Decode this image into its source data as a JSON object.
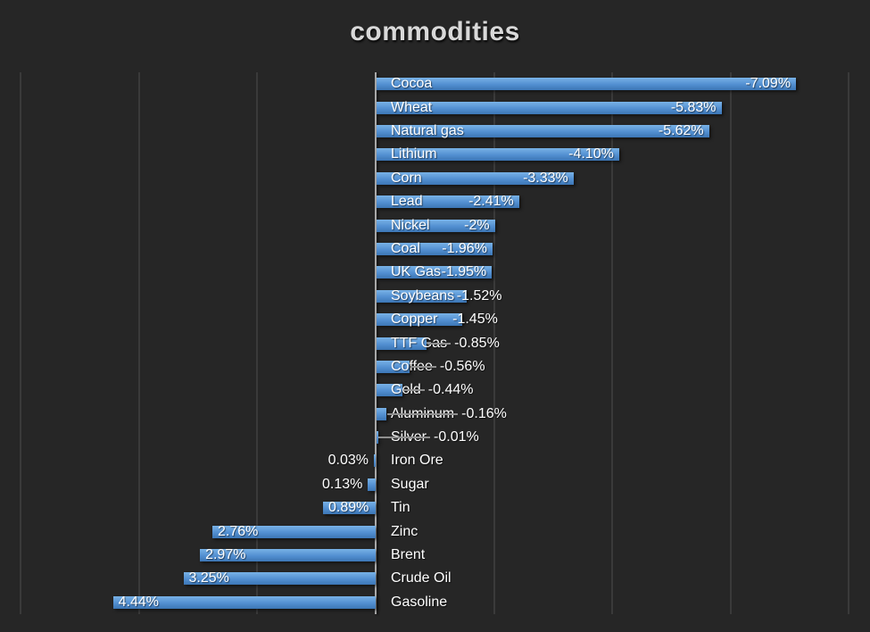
{
  "colors": {
    "background": "#262626",
    "plot_gridline": "#3a3a3a",
    "zero_axis": "#a8a8a8",
    "bar_gradient_top": "#79b2e6",
    "bar_gradient_mid": "#528fd1",
    "bar_gradient_bottom": "#3c76b5",
    "label_text": "#ffffff",
    "title_text": "#d9d9d9",
    "leader_line": "#8f8f8f"
  },
  "chart_data": {
    "type": "bar",
    "orientation": "horizontal",
    "title": "commodities",
    "categories": [
      "Cocoa",
      "Wheat",
      "Natural gas",
      "Lithium",
      "Corn",
      "Lead",
      "Nickel",
      "Coal",
      "UK Gas",
      "Soybeans",
      "Copper",
      "TTF Gas",
      "Coffee",
      "Gold",
      "Aluminum",
      "Silver",
      "Iron Ore",
      "Sugar",
      "Tin",
      "Zinc",
      "Brent",
      "Crude Oil",
      "Gasoline"
    ],
    "values": [
      -7.09,
      -5.83,
      -5.62,
      -4.1,
      -3.33,
      -2.41,
      -2,
      -1.96,
      -1.95,
      -1.52,
      -1.45,
      -0.85,
      -0.56,
      -0.44,
      -0.16,
      -0.01,
      0.03,
      0.13,
      0.89,
      2.76,
      2.97,
      3.25,
      4.44
    ],
    "labels": [
      "-7.09%",
      "-5.83%",
      "-5.62%",
      "-4.10%",
      "-3.33%",
      "-2.41%",
      "-2%",
      "-1.96%",
      "-1.95%",
      "-1.52%",
      "-1.45%",
      "-0.85%",
      "-0.56%",
      "-0.44%",
      "-0.16%",
      "-0.01%",
      "0.03%",
      "0.13%",
      "0.89%",
      "2.76%",
      "2.97%",
      "3.25%",
      "4.44%"
    ],
    "value_axis": {
      "max_pct": 6,
      "min_pct": -8,
      "gridline_interval_pct": 2,
      "tick_labels_visible": false,
      "negative_direction": "right"
    },
    "legend": "none",
    "grid": "vertical-on"
  }
}
